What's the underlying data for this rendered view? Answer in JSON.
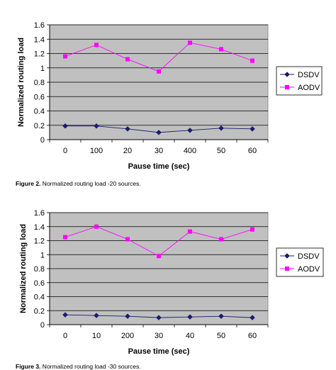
{
  "chart_data": [
    {
      "type": "line",
      "categories": [
        "0",
        "100",
        "20",
        "30",
        "400",
        "50",
        "60"
      ],
      "series": [
        {
          "name": "DSDV",
          "values": [
            0.19,
            0.19,
            0.15,
            0.1,
            0.13,
            0.16,
            0.15
          ],
          "color": "#1a1a6e",
          "marker": "diamond"
        },
        {
          "name": "AODV",
          "values": [
            1.16,
            1.32,
            1.12,
            0.95,
            1.35,
            1.26,
            1.1
          ],
          "color": "#ff00ff",
          "marker": "square"
        }
      ],
      "ylim": [
        0,
        1.6
      ],
      "yticks": [
        "0",
        "0.2",
        "0.4",
        "0.6",
        "0.8",
        "1",
        "1.2",
        "1.4",
        "1.6"
      ],
      "xlabel": "Pause time (sec)",
      "ylabel": "Normalized routing load",
      "grid": true,
      "plot_background": "#c0c0c0",
      "legend": "right",
      "caption_label": "Figure 2.",
      "caption_text": " Normalized routing load -20 sources."
    },
    {
      "type": "line",
      "categories": [
        "0",
        "10",
        "200",
        "30",
        "40",
        "50",
        "60"
      ],
      "series": [
        {
          "name": "DSDV",
          "values": [
            0.14,
            0.13,
            0.12,
            0.1,
            0.11,
            0.12,
            0.1
          ],
          "color": "#1a1a6e",
          "marker": "diamond"
        },
        {
          "name": "AODV",
          "values": [
            1.25,
            1.4,
            1.22,
            0.98,
            1.33,
            1.22,
            1.36
          ],
          "color": "#ff00ff",
          "marker": "square"
        }
      ],
      "ylim": [
        0,
        1.6
      ],
      "yticks": [
        "0",
        "0.2",
        "0.4",
        "0.6",
        "0.8",
        "1",
        "1.2",
        "1.4",
        "1.6"
      ],
      "xlabel": "Pause time (sec)",
      "ylabel": "Normalized routing load",
      "grid": true,
      "plot_background": "#c0c0c0",
      "legend": "right",
      "caption_label": "Figure 3.",
      "caption_text": " Normalized routing load -30 sources."
    }
  ]
}
